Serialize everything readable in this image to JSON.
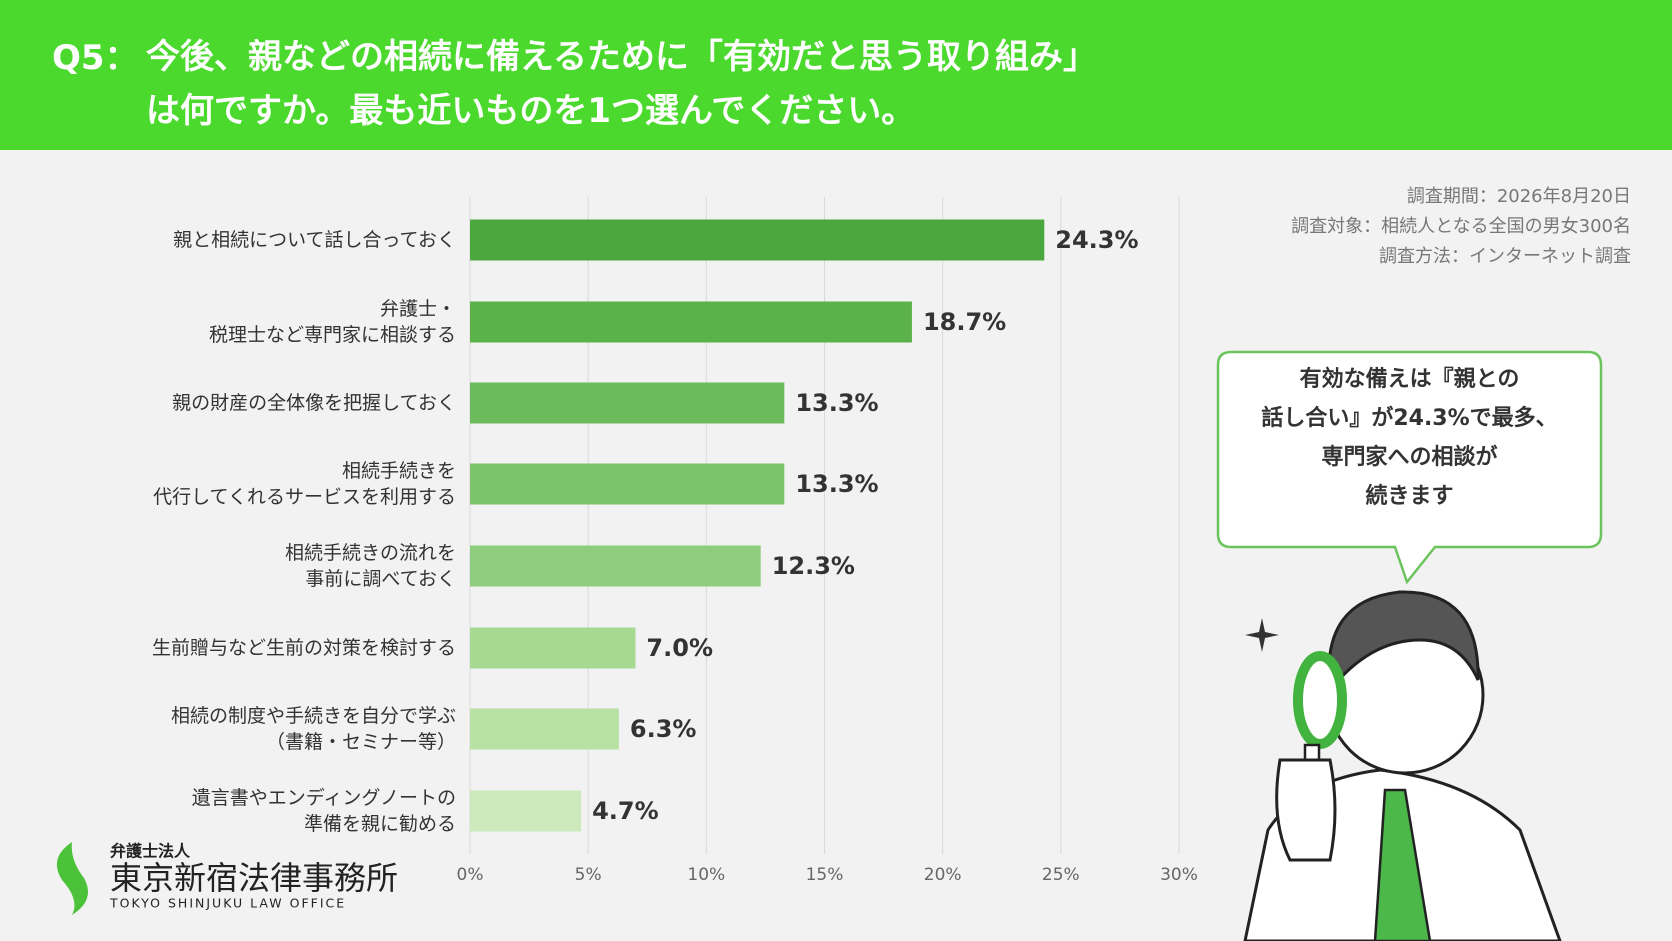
{
  "header": {
    "question": "Q5：",
    "title": "今後、親などの相続に備えるために「有効だと思う取り組み」\nは何ですか。最も近いものを1つ選んでください。"
  },
  "survey": [
    "調査期間：2026年8月20日",
    "調査対象：相続人となる全国の男女300名",
    "調査方法：インターネット調査"
  ],
  "bubble": "有効な備えは『親との\n話し合い』が24.3%で最多、\n専門家への相談が\n続きます",
  "logo": {
    "sub": "弁護士法人",
    "name": "東京新宿法律事務所",
    "en": "TOKYO SHINJUKU LAW OFFICE"
  },
  "chart_data": {
    "type": "bar",
    "orientation": "horizontal",
    "categories": [
      "親と相続について話し合っておく",
      "弁護士・\n税理士など専門家に相談する",
      "親の財産の全体像を把握しておく",
      "相続手続きを\n代行してくれるサービスを利用する",
      "相続手続きの流れを\n事前に調べておく",
      "生前贈与など生前の対策を検討する",
      "相続の制度や手続きを自分で学ぶ\n（書籍・セミナー等）",
      "遺言書やエンディングノートの\n準備を親に勧める"
    ],
    "values": [
      24.3,
      18.7,
      13.3,
      13.3,
      12.3,
      7.0,
      6.3,
      4.7
    ],
    "value_labels": [
      "24.3%",
      "18.7%",
      "13.3%",
      "13.3%",
      "12.3%",
      "7.0%",
      "6.3%",
      "4.7%"
    ],
    "colors": [
      "#4aa83f",
      "#5bb24b",
      "#6bbb5d",
      "#7cc46c",
      "#8dcd7d",
      "#a6d992",
      "#b8e1a4",
      "#cce9bb"
    ],
    "xlim": [
      0,
      30
    ],
    "xticks": [
      {
        "value": 0,
        "label": "0%"
      },
      {
        "value": 5,
        "label": "5%"
      },
      {
        "value": 10,
        "label": "10%"
      },
      {
        "value": 15,
        "label": "15%"
      },
      {
        "value": 20,
        "label": "20%"
      },
      {
        "value": 25,
        "label": "25%"
      },
      {
        "value": 30,
        "label": "30%"
      }
    ],
    "grid": true
  }
}
